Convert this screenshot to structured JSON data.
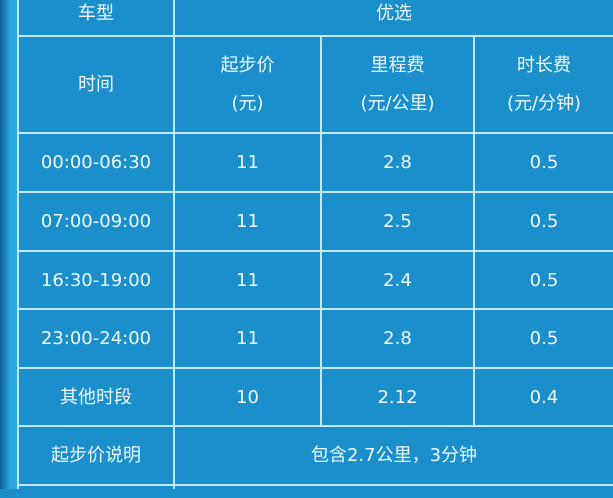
{
  "header": {
    "vehicle_type_label": "车型",
    "vehicle_type_value": "优选",
    "time_label": "时间",
    "columns": [
      {
        "name": "起步价",
        "unit": "(元)"
      },
      {
        "name": "里程费",
        "unit": "(元/公里)"
      },
      {
        "name": "时长费",
        "unit": "(元/分钟)"
      }
    ]
  },
  "rows": [
    {
      "time": "00:00-06:30",
      "base": "11",
      "mileage": "2.8",
      "duration": "0.5"
    },
    {
      "time": "07:00-09:00",
      "base": "11",
      "mileage": "2.5",
      "duration": "0.5"
    },
    {
      "time": "16:30-19:00",
      "base": "11",
      "mileage": "2.4",
      "duration": "0.5"
    },
    {
      "time": "23:00-24:00",
      "base": "11",
      "mileage": "2.8",
      "duration": "0.5"
    },
    {
      "time": "其他时段",
      "base": "10",
      "mileage": "2.12",
      "duration": "0.4"
    }
  ],
  "note": {
    "label": "起步价说明",
    "value": "包含2.7公里，3分钟"
  }
}
